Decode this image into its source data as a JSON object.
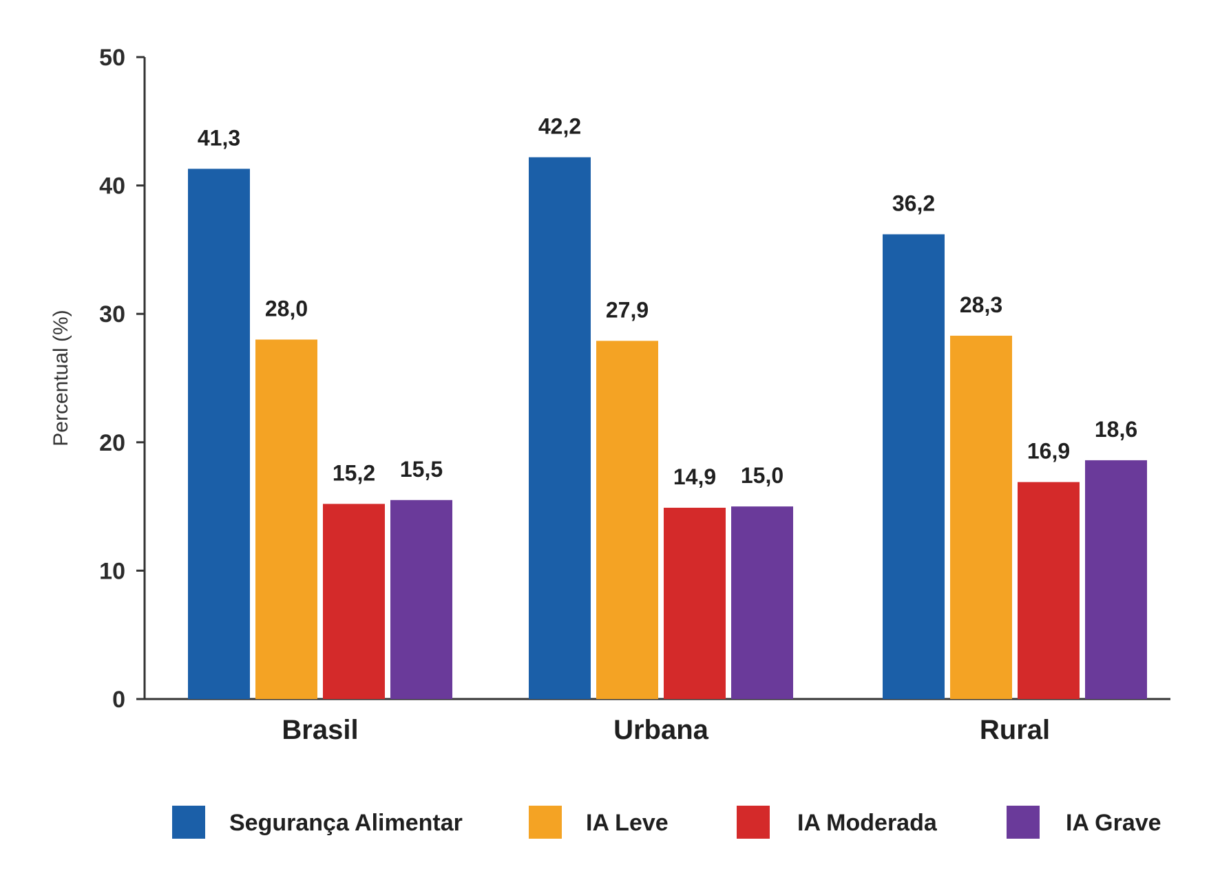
{
  "chart_data": {
    "type": "bar",
    "categories": [
      "Brasil",
      "Urbana",
      "Rural"
    ],
    "series": [
      {
        "name": "Segurança Alimentar",
        "color": "#1b5fa8",
        "values": [
          41.3,
          42.2,
          36.2
        ],
        "labels": [
          "41,3",
          "42,2",
          "36,2"
        ]
      },
      {
        "name": "IA Leve",
        "color": "#f4a324",
        "values": [
          28.0,
          27.9,
          28.3
        ],
        "labels": [
          "28,0",
          "27,9",
          "28,3"
        ]
      },
      {
        "name": "IA Moderada",
        "color": "#d42a2a",
        "values": [
          15.2,
          14.9,
          16.9
        ],
        "labels": [
          "15,2",
          "14,9",
          "16,9"
        ]
      },
      {
        "name": "IA Grave",
        "color": "#6a3a9a",
        "values": [
          15.5,
          15.0,
          18.6
        ],
        "labels": [
          "15,5",
          "15,0",
          "18,6"
        ]
      }
    ],
    "xlabel": "",
    "ylabel": "Percentual (%)",
    "ylim": [
      0,
      50
    ],
    "yticks": [
      "0",
      "10",
      "20",
      "30",
      "40",
      "50"
    ],
    "legend_position": "bottom",
    "grid": false
  }
}
